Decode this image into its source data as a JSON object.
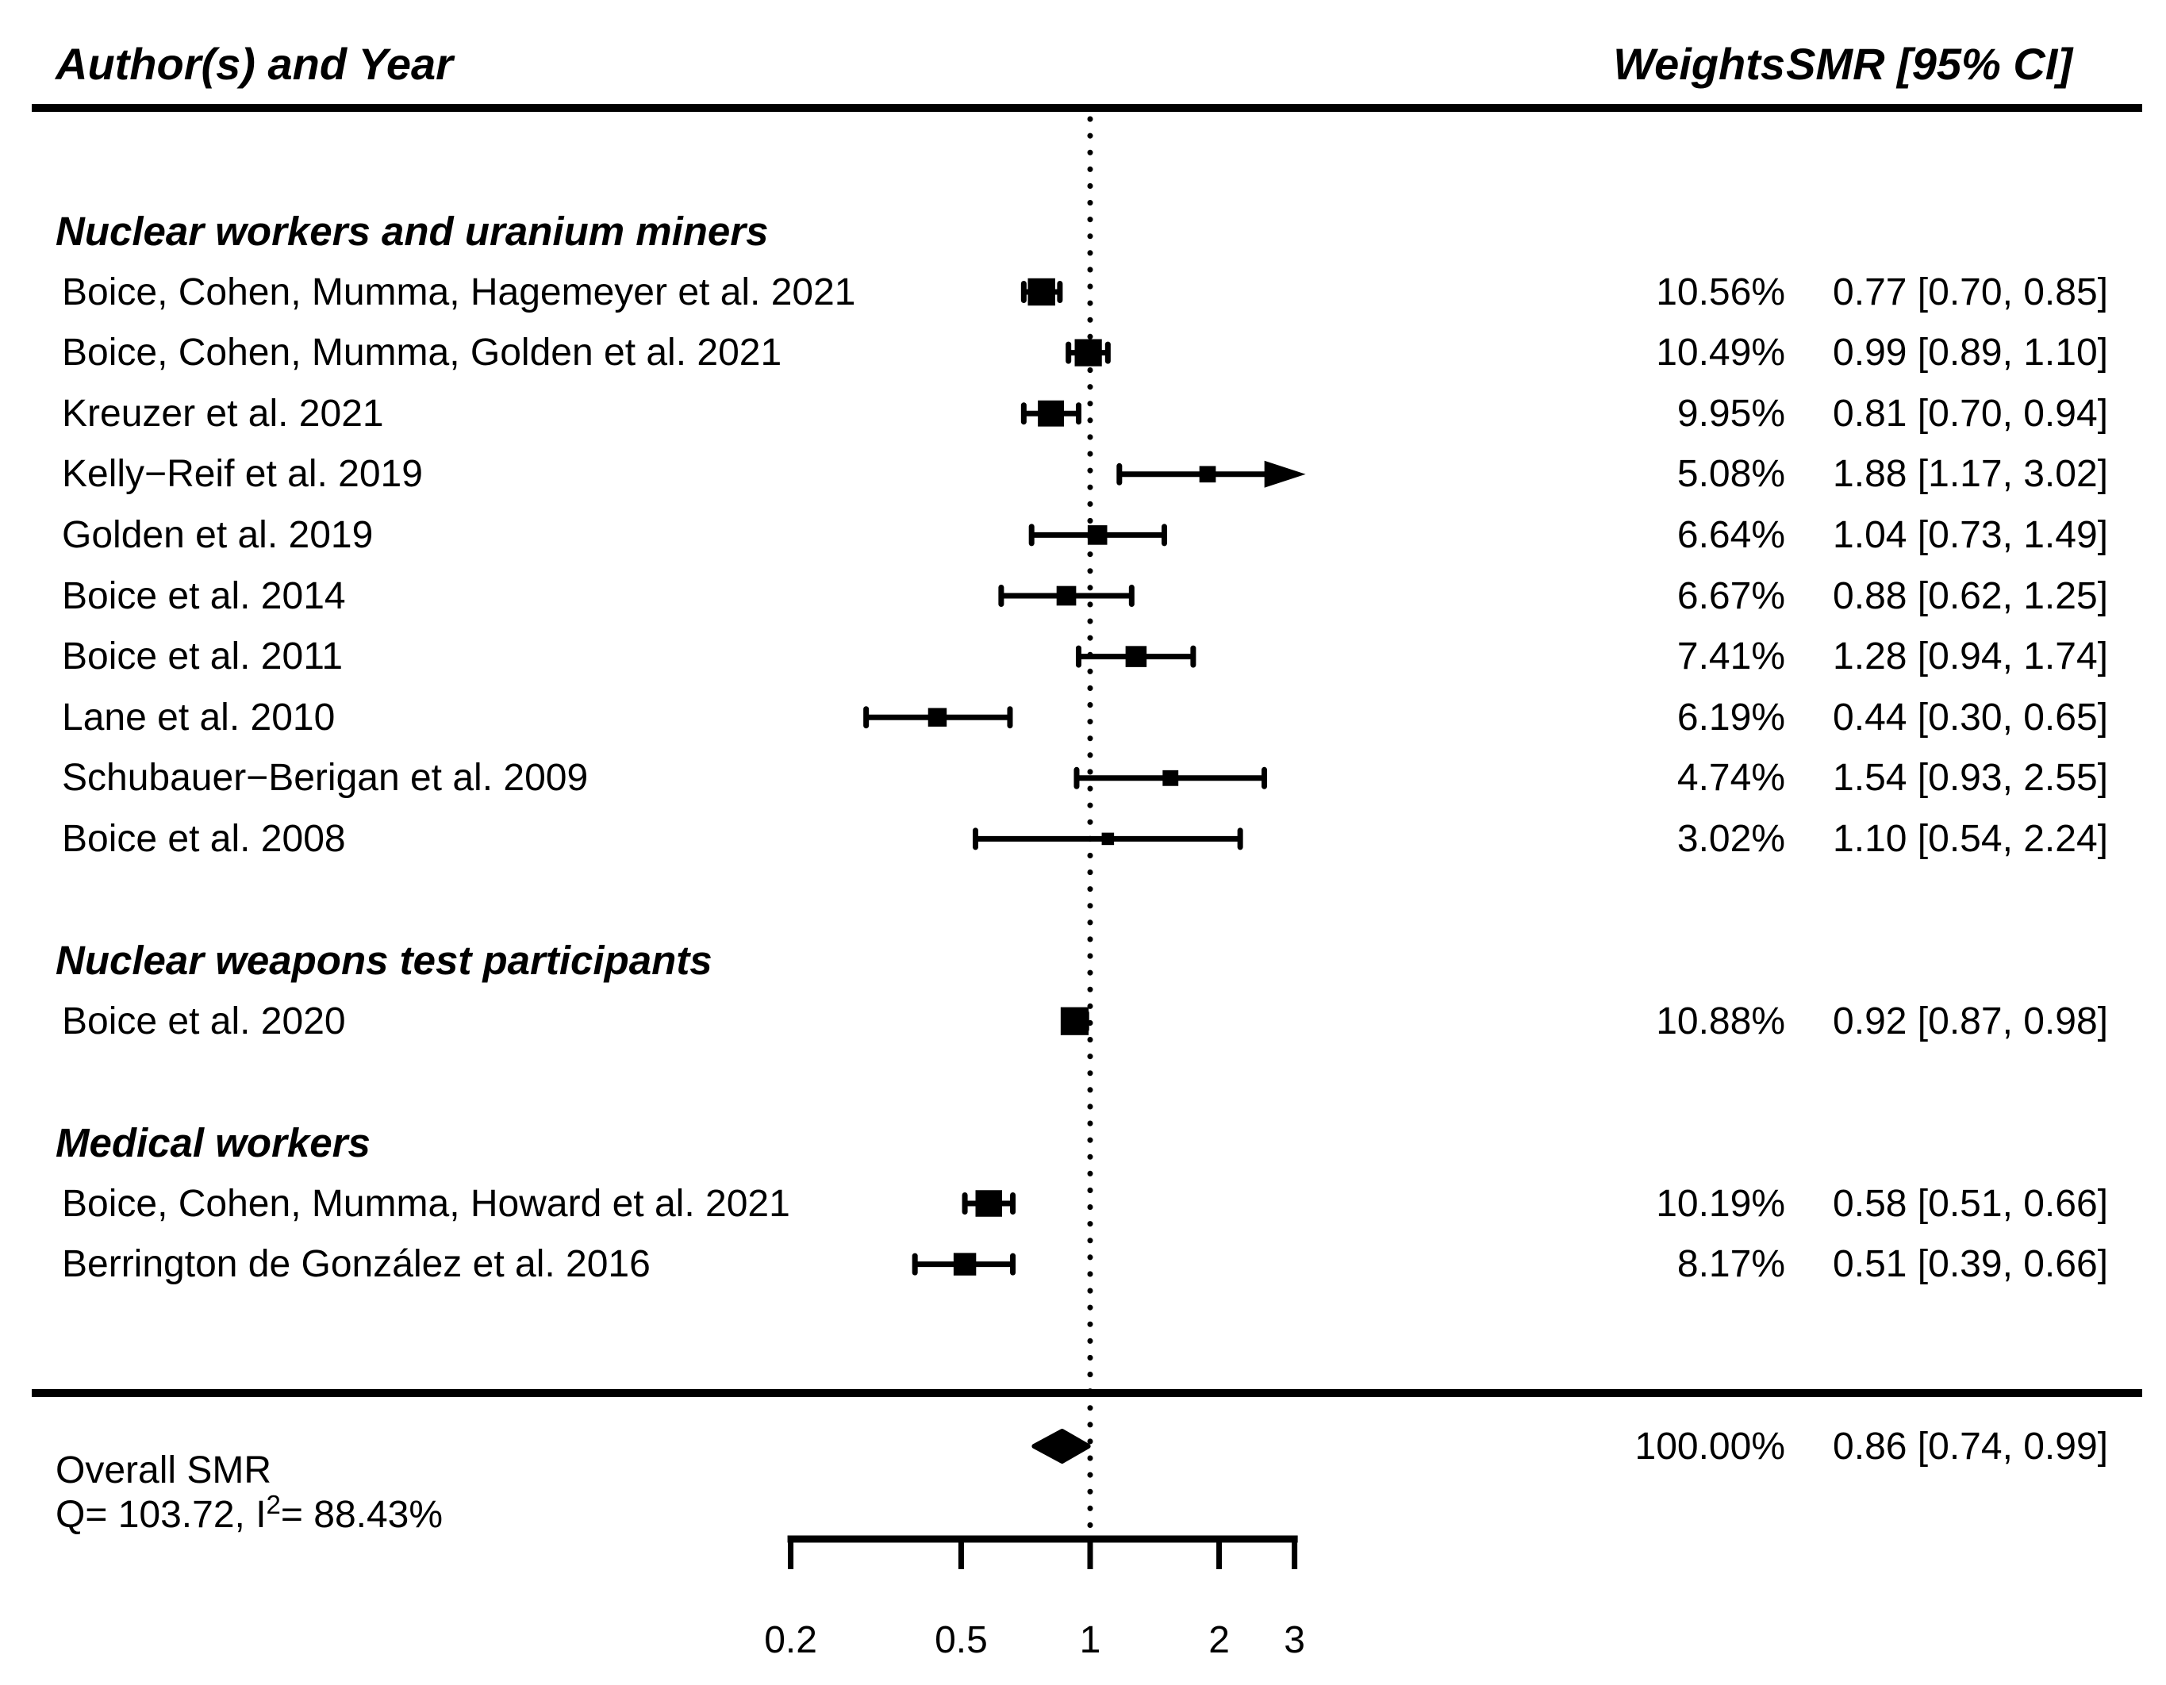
{
  "header": {
    "author_col": "Author(s) and Year",
    "weights_col": "Weights",
    "smr_col": "SMR [95% CI]"
  },
  "chart_data": {
    "type": "forest",
    "x_scale": "log10",
    "x_axis_range": [
      0.2,
      3
    ],
    "x_ref_line": 1,
    "x_ticks": [
      0.2,
      0.5,
      1,
      2,
      3
    ],
    "x_tick_labels": [
      "0.2",
      "0.5",
      "1",
      "2",
      "3"
    ],
    "groups": [
      {
        "label": "Nuclear workers and uranium miners",
        "studies": [
          {
            "author": "Boice, Cohen, Mumma, Hagemeyer et al. 2021",
            "weight_pct": 10.56,
            "weight_label": "10.56%",
            "smr": 0.77,
            "ci_lo": 0.7,
            "ci_hi": 0.85,
            "smr_label": "0.77 [0.70, 0.85]"
          },
          {
            "author": "Boice, Cohen, Mumma, Golden et al. 2021",
            "weight_pct": 10.49,
            "weight_label": "10.49%",
            "smr": 0.99,
            "ci_lo": 0.89,
            "ci_hi": 1.1,
            "smr_label": "0.99 [0.89, 1.10]"
          },
          {
            "author": "Kreuzer et al. 2021",
            "weight_pct": 9.95,
            "weight_label": "9.95%",
            "smr": 0.81,
            "ci_lo": 0.7,
            "ci_hi": 0.94,
            "smr_label": "0.81 [0.70, 0.94]"
          },
          {
            "author": "Kelly−Reif et al. 2019",
            "weight_pct": 5.08,
            "weight_label": "5.08%",
            "smr": 1.88,
            "ci_lo": 1.17,
            "ci_hi": 3.02,
            "smr_label": "1.88 [1.17, 3.02]"
          },
          {
            "author": "Golden et al. 2019",
            "weight_pct": 6.64,
            "weight_label": "6.64%",
            "smr": 1.04,
            "ci_lo": 0.73,
            "ci_hi": 1.49,
            "smr_label": "1.04 [0.73, 1.49]"
          },
          {
            "author": "Boice et al. 2014",
            "weight_pct": 6.67,
            "weight_label": "6.67%",
            "smr": 0.88,
            "ci_lo": 0.62,
            "ci_hi": 1.25,
            "smr_label": "0.88 [0.62, 1.25]"
          },
          {
            "author": "Boice et al. 2011",
            "weight_pct": 7.41,
            "weight_label": "7.41%",
            "smr": 1.28,
            "ci_lo": 0.94,
            "ci_hi": 1.74,
            "smr_label": "1.28 [0.94, 1.74]"
          },
          {
            "author": "Lane et al. 2010",
            "weight_pct": 6.19,
            "weight_label": "6.19%",
            "smr": 0.44,
            "ci_lo": 0.3,
            "ci_hi": 0.65,
            "smr_label": "0.44 [0.30, 0.65]"
          },
          {
            "author": "Schubauer−Berigan et al. 2009",
            "weight_pct": 4.74,
            "weight_label": "4.74%",
            "smr": 1.54,
            "ci_lo": 0.93,
            "ci_hi": 2.55,
            "smr_label": "1.54 [0.93, 2.55]"
          },
          {
            "author": "Boice et al. 2008",
            "weight_pct": 3.02,
            "weight_label": "3.02%",
            "smr": 1.1,
            "ci_lo": 0.54,
            "ci_hi": 2.24,
            "smr_label": "1.10 [0.54, 2.24]"
          }
        ]
      },
      {
        "label": "Nuclear weapons test participants",
        "studies": [
          {
            "author": "Boice et al. 2020",
            "weight_pct": 10.88,
            "weight_label": "10.88%",
            "smr": 0.92,
            "ci_lo": 0.87,
            "ci_hi": 0.98,
            "smr_label": "0.92 [0.87, 0.98]"
          }
        ]
      },
      {
        "label": "Medical workers",
        "studies": [
          {
            "author": "Boice, Cohen, Mumma, Howard et al. 2021",
            "weight_pct": 10.19,
            "weight_label": "10.19%",
            "smr": 0.58,
            "ci_lo": 0.51,
            "ci_hi": 0.66,
            "smr_label": "0.58 [0.51, 0.66]"
          },
          {
            "author": "Berrington de González et al. 2016",
            "weight_pct": 8.17,
            "weight_label": "8.17%",
            "smr": 0.51,
            "ci_lo": 0.39,
            "ci_hi": 0.66,
            "smr_label": "0.51 [0.39, 0.66]"
          }
        ]
      }
    ],
    "overall": {
      "label": "Overall SMR",
      "het_prefix": "Q= 103.72, I",
      "het_sup": "2",
      "het_suffix": "= 88.43%",
      "weight_label": "100.00%",
      "smr": 0.86,
      "ci_lo": 0.74,
      "ci_hi": 0.99,
      "smr_label": "0.86 [0.74, 0.99]"
    },
    "colors": {
      "ink": "#000000",
      "background": "#ffffff"
    }
  }
}
